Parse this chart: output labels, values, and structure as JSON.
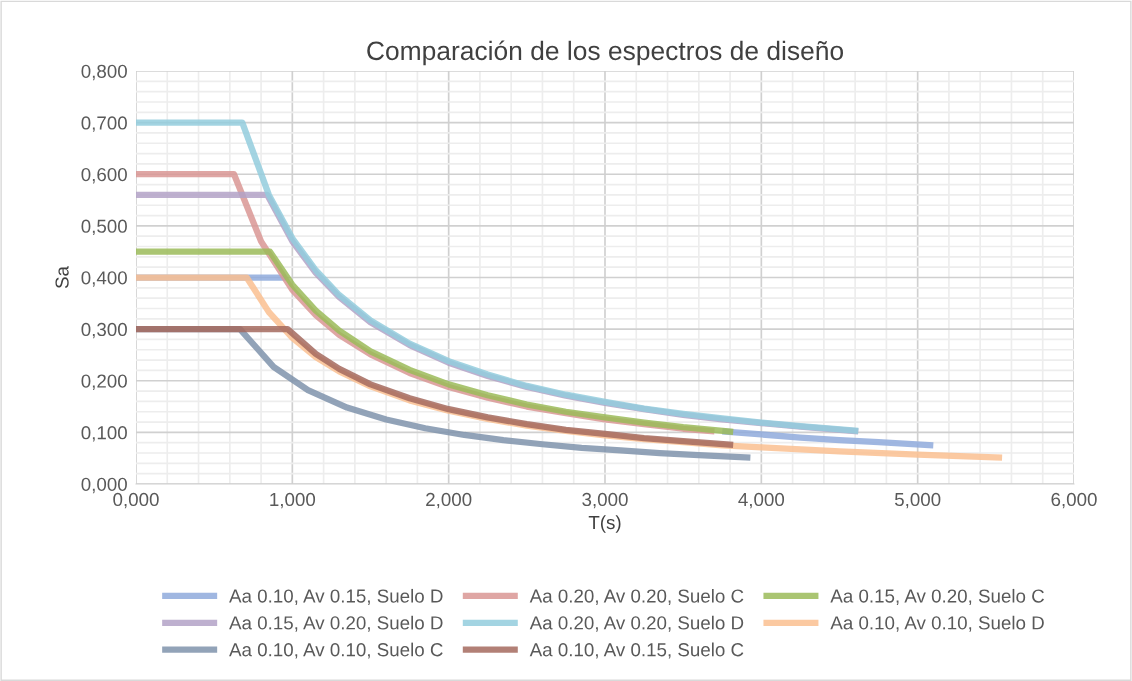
{
  "chart_data": {
    "type": "line",
    "title": "Comparación de los espectros de diseño",
    "xlabel": "T(s)",
    "ylabel": "Sa",
    "series": [
      {
        "name": "Aa 0.10, Av 0.15, Suelo D",
        "color": "#8faadc",
        "x": [
          0,
          0.96,
          1.15,
          1.3,
          1.5,
          1.75,
          2,
          2.25,
          2.5,
          2.75,
          3,
          3.25,
          3.5,
          3.75,
          4,
          4.25,
          4.5,
          4.75,
          5.1
        ],
        "values": [
          0.4,
          0.4,
          null,
          null,
          null,
          null,
          null,
          null,
          null,
          null,
          null,
          null,
          null,
          0.102,
          0.096,
          0.09,
          0.085,
          0.081,
          0.075
        ]
      },
      {
        "name": "Aa 0.20, Av 0.20, Suelo C",
        "color": "#d99694",
        "x": [
          0,
          0.627,
          0.8,
          1.0,
          1.15,
          1.3,
          1.5,
          1.75,
          2,
          2.25,
          2.5,
          2.75,
          3,
          3.25,
          3.5,
          3.7
        ],
        "values": [
          0.6,
          0.6,
          0.47,
          0.376,
          0.327,
          0.289,
          0.251,
          0.215,
          0.188,
          0.167,
          0.15,
          0.137,
          0.125,
          0.116,
          0.107,
          0.102
        ]
      },
      {
        "name": "Aa 0.15, Av 0.20, Suelo C",
        "color": "#9bbb59",
        "x": [
          0,
          0.857,
          1.0,
          1.15,
          1.3,
          1.5,
          1.75,
          2,
          2.25,
          2.5,
          2.75,
          3,
          3.25,
          3.5,
          3.82
        ],
        "values": [
          0.45,
          0.45,
          0.386,
          0.336,
          0.297,
          0.257,
          0.221,
          0.193,
          0.172,
          0.154,
          0.14,
          0.129,
          0.119,
          0.11,
          0.101
        ]
      },
      {
        "name": "Aa 0.15, Av 0.20, Suelo D",
        "color": "#b3a2c7",
        "x": [
          0,
          0.84,
          1.0,
          1.15,
          1.3,
          1.5,
          1.75,
          2,
          2.25,
          2.5,
          2.75,
          3,
          3.25,
          3.5,
          3.75,
          4,
          4.25,
          4.62
        ],
        "values": [
          0.56,
          0.56,
          0.47,
          0.409,
          0.362,
          0.313,
          0.269,
          0.235,
          0.209,
          0.188,
          0.171,
          0.157,
          0.145,
          0.134,
          0.125,
          0.118,
          0.111,
          0.102
        ]
      },
      {
        "name": "Aa 0.20, Av 0.20, Suelo D",
        "color": "#93cddd",
        "x": [
          0,
          0.68,
          0.85,
          1.0,
          1.15,
          1.3,
          1.5,
          1.75,
          2,
          2.25,
          2.5,
          2.75,
          3,
          3.25,
          3.5,
          3.75,
          4,
          4.25,
          4.62
        ],
        "values": [
          0.7,
          0.7,
          0.56,
          0.476,
          0.414,
          0.366,
          0.317,
          0.272,
          0.238,
          0.212,
          0.19,
          0.173,
          0.159,
          0.146,
          0.136,
          0.127,
          0.119,
          0.112,
          0.103
        ]
      },
      {
        "name": "Aa 0.10, Av 0.10, Suelo D",
        "color": "#fac090",
        "x": [
          0,
          0.708,
          0.85,
          1.0,
          1.15,
          1.3,
          1.5,
          1.75,
          2,
          2.25,
          2.5,
          2.75,
          3,
          3.25,
          3.5,
          3.75,
          4,
          4.5,
          5,
          5.54
        ],
        "values": [
          0.4,
          0.4,
          0.333,
          0.283,
          0.246,
          0.218,
          0.189,
          0.162,
          0.142,
          0.126,
          0.113,
          0.103,
          0.094,
          0.087,
          0.081,
          0.075,
          0.071,
          0.063,
          0.057,
          0.051
        ]
      },
      {
        "name": "Aa 0.10, Av 0.10, Suelo C",
        "color": "#7f93ab",
        "x": [
          0,
          0.665,
          0.88,
          1.1,
          1.35,
          1.6,
          1.85,
          2.1,
          2.35,
          2.6,
          2.85,
          3.1,
          3.35,
          3.6,
          3.93
        ],
        "values": [
          0.3,
          0.3,
          0.227,
          0.182,
          0.148,
          0.125,
          0.108,
          0.095,
          0.085,
          0.077,
          0.07,
          0.065,
          0.06,
          0.056,
          0.051
        ]
      },
      {
        "name": "Aa 0.10, Av 0.15, Suelo C",
        "color": "#a56a5e",
        "x": [
          0,
          0.97,
          1.15,
          1.3,
          1.5,
          1.75,
          2,
          2.25,
          2.5,
          2.75,
          3,
          3.25,
          3.5,
          3.82
        ],
        "values": [
          0.3,
          0.3,
          0.252,
          0.223,
          0.193,
          0.166,
          0.145,
          0.129,
          0.116,
          0.105,
          0.097,
          0.089,
          0.083,
          0.076
        ]
      }
    ],
    "xlim": [
      0,
      6
    ],
    "ylim": [
      0,
      0.8
    ],
    "xticks": [
      {
        "value": 0,
        "label": "0,000"
      },
      {
        "value": 0.2,
        "label": null
      },
      {
        "value": 0.4,
        "label": null
      },
      {
        "value": 0.6,
        "label": null
      },
      {
        "value": 0.8,
        "label": null
      },
      {
        "value": 1,
        "label": "1,000"
      },
      {
        "value": 1.2,
        "label": null
      },
      {
        "value": 1.4,
        "label": null
      },
      {
        "value": 1.6,
        "label": null
      },
      {
        "value": 1.8,
        "label": null
      },
      {
        "value": 2,
        "label": "2,000"
      },
      {
        "value": 2.2,
        "label": null
      },
      {
        "value": 2.4,
        "label": null
      },
      {
        "value": 2.6,
        "label": null
      },
      {
        "value": 2.8,
        "label": null
      },
      {
        "value": 3,
        "label": "3,000"
      },
      {
        "value": 3.2,
        "label": null
      },
      {
        "value": 3.4,
        "label": null
      },
      {
        "value": 3.6,
        "label": null
      },
      {
        "value": 3.8,
        "label": null
      },
      {
        "value": 4,
        "label": "4,000"
      },
      {
        "value": 4.2,
        "label": null
      },
      {
        "value": 4.4,
        "label": null
      },
      {
        "value": 4.6,
        "label": null
      },
      {
        "value": 4.8,
        "label": null
      },
      {
        "value": 5,
        "label": "5,000"
      },
      {
        "value": 5.2,
        "label": null
      },
      {
        "value": 5.4,
        "label": null
      },
      {
        "value": 5.6,
        "label": null
      },
      {
        "value": 5.8,
        "label": null
      },
      {
        "value": 6,
        "label": "6,000"
      }
    ],
    "yticks": [
      {
        "value": 0,
        "label": "0,000"
      },
      {
        "value": 0.02,
        "label": null
      },
      {
        "value": 0.04,
        "label": null
      },
      {
        "value": 0.06,
        "label": null
      },
      {
        "value": 0.08,
        "label": null
      },
      {
        "value": 0.1,
        "label": "0,100"
      },
      {
        "value": 0.12,
        "label": null
      },
      {
        "value": 0.14,
        "label": null
      },
      {
        "value": 0.16,
        "label": null
      },
      {
        "value": 0.18,
        "label": null
      },
      {
        "value": 0.2,
        "label": "0,200"
      },
      {
        "value": 0.22,
        "label": null
      },
      {
        "value": 0.24,
        "label": null
      },
      {
        "value": 0.26,
        "label": null
      },
      {
        "value": 0.28,
        "label": null
      },
      {
        "value": 0.3,
        "label": "0,300"
      },
      {
        "value": 0.32,
        "label": null
      },
      {
        "value": 0.34,
        "label": null
      },
      {
        "value": 0.36,
        "label": null
      },
      {
        "value": 0.38,
        "label": null
      },
      {
        "value": 0.4,
        "label": "0,400"
      },
      {
        "value": 0.42,
        "label": null
      },
      {
        "value": 0.44,
        "label": null
      },
      {
        "value": 0.46,
        "label": null
      },
      {
        "value": 0.48,
        "label": null
      },
      {
        "value": 0.5,
        "label": "0,500"
      },
      {
        "value": 0.52,
        "label": null
      },
      {
        "value": 0.54,
        "label": null
      },
      {
        "value": 0.56,
        "label": null
      },
      {
        "value": 0.58,
        "label": null
      },
      {
        "value": 0.6,
        "label": "0,600"
      },
      {
        "value": 0.62,
        "label": null
      },
      {
        "value": 0.64,
        "label": null
      },
      {
        "value": 0.66,
        "label": null
      },
      {
        "value": 0.68,
        "label": null
      },
      {
        "value": 0.7,
        "label": "0,700"
      },
      {
        "value": 0.72,
        "label": null
      },
      {
        "value": 0.74,
        "label": null
      },
      {
        "value": 0.76,
        "label": null
      },
      {
        "value": 0.78,
        "label": null
      },
      {
        "value": 0.8,
        "label": "0,800"
      }
    ],
    "grid": true,
    "legend": "bottom",
    "marker": "none",
    "line_style": "solid"
  }
}
